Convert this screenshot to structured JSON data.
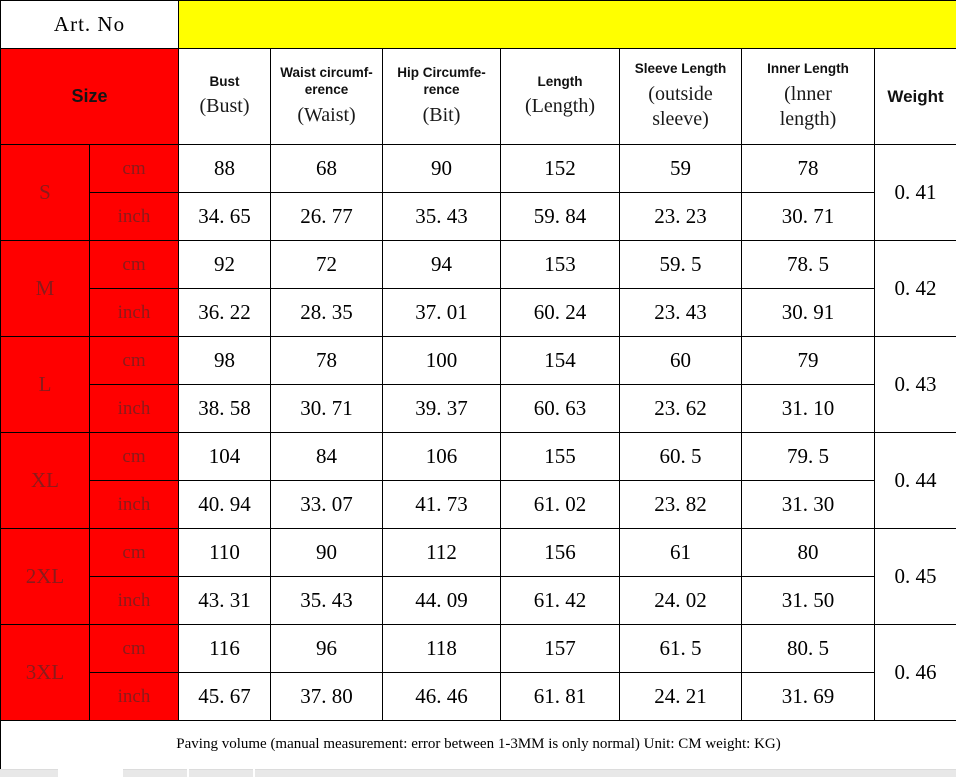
{
  "art_no": {
    "label": "Art. No",
    "value": ""
  },
  "header": {
    "size_label": "Size",
    "columns": [
      {
        "bold": "Bust",
        "paren": "(Bust)"
      },
      {
        "bold": "Waist circumf-\nerence",
        "paren": "(Waist)"
      },
      {
        "bold": "Hip Circumfe-\nrence",
        "paren": "(Bit)"
      },
      {
        "bold": "Length",
        "paren": "(Length)"
      },
      {
        "bold": "Sleeve Length",
        "paren": "(outside\nsleeve)"
      },
      {
        "bold": "Inner Length",
        "paren": "(lnner\nlength)"
      }
    ],
    "weight_label": "Weight"
  },
  "units": {
    "cm": "cm",
    "inch": "inch"
  },
  "sizes": [
    {
      "label": "S",
      "cm": [
        "88",
        "68",
        "90",
        "152",
        "59",
        "78"
      ],
      "inch": [
        "34. 65",
        "26. 77",
        "35. 43",
        "59. 84",
        "23. 23",
        "30. 71"
      ],
      "weight": "0. 41"
    },
    {
      "label": "M",
      "cm": [
        "92",
        "72",
        "94",
        "153",
        "59. 5",
        "78. 5"
      ],
      "inch": [
        "36. 22",
        "28. 35",
        "37. 01",
        "60. 24",
        "23. 43",
        "30. 91"
      ],
      "weight": "0. 42"
    },
    {
      "label": "L",
      "cm": [
        "98",
        "78",
        "100",
        "154",
        "60",
        "79"
      ],
      "inch": [
        "38. 58",
        "30. 71",
        "39. 37",
        "60. 63",
        "23. 62",
        "31. 10"
      ],
      "weight": "0. 43"
    },
    {
      "label": "XL",
      "cm": [
        "104",
        "84",
        "106",
        "155",
        "60. 5",
        "79. 5"
      ],
      "inch": [
        "40. 94",
        "33. 07",
        "41. 73",
        "61. 02",
        "23. 82",
        "31. 30"
      ],
      "weight": "0. 44"
    },
    {
      "label": "2XL",
      "cm": [
        "110",
        "90",
        "112",
        "156",
        "61",
        "80"
      ],
      "inch": [
        "43. 31",
        "35. 43",
        "44. 09",
        "61. 42",
        "24. 02",
        "31. 50"
      ],
      "weight": "0. 45"
    },
    {
      "label": "3XL",
      "cm": [
        "116",
        "96",
        "118",
        "157",
        "61. 5",
        "80. 5"
      ],
      "inch": [
        "45. 67",
        "37. 80",
        "46. 46",
        "61. 81",
        "24. 21",
        "31. 69"
      ],
      "weight": "0. 46"
    }
  ],
  "note": "Paving volume (manual measurement: error between 1-3MM is only normal) Unit: CM weight: KG)"
}
